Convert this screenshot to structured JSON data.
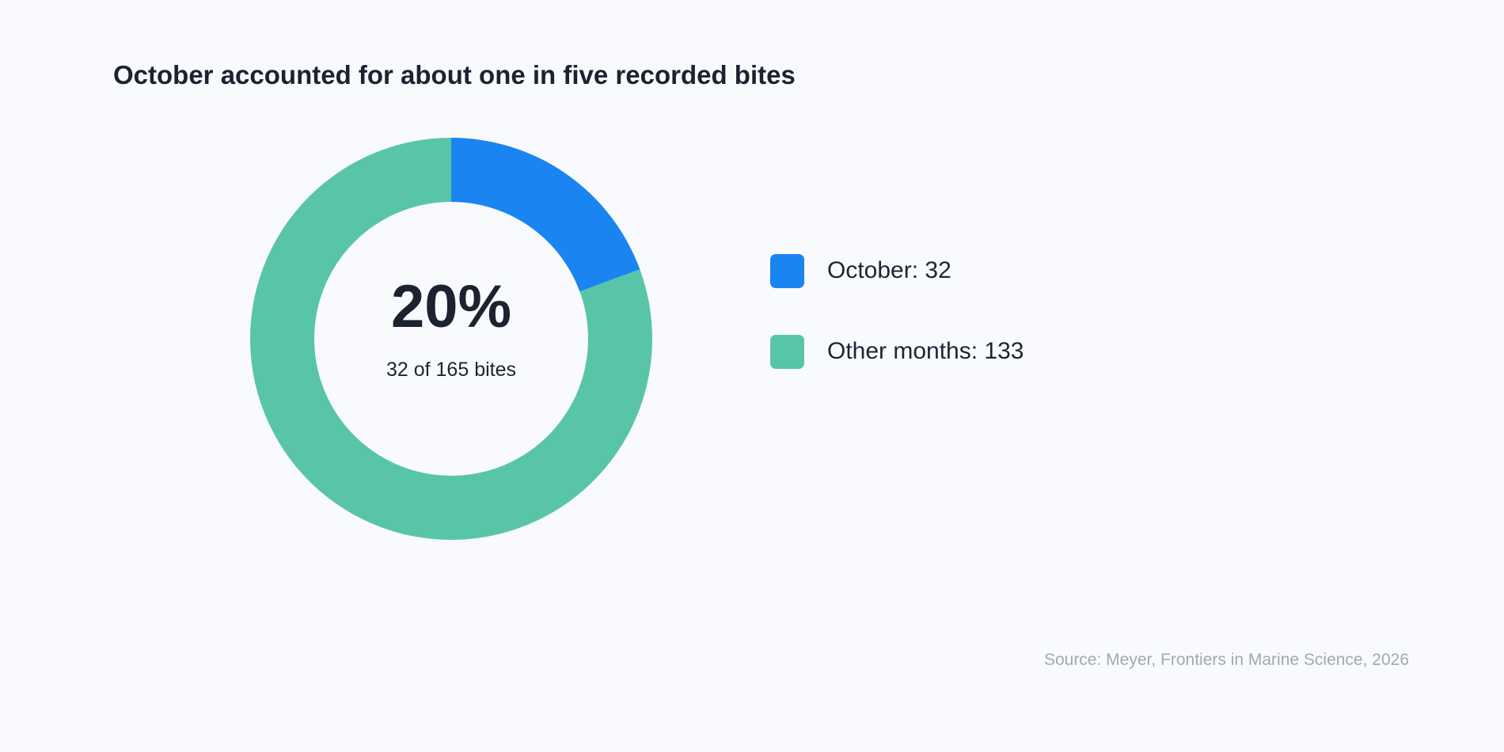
{
  "chart_data": {
    "type": "pie",
    "style": "donut",
    "title": "October accounted for about one in five recorded bites",
    "slices": [
      {
        "label": "October",
        "value": 32,
        "color": "#1a85f0",
        "legend_text": "October: 32"
      },
      {
        "label": "Other months",
        "value": 133,
        "color": "#59c5a8",
        "legend_text": "Other months: 133"
      }
    ],
    "center_value": "20%",
    "center_caption": "32 of 165 bites",
    "legend_position": "right",
    "source": "Source: Meyer, Frontiers in Marine Science, 2026"
  }
}
